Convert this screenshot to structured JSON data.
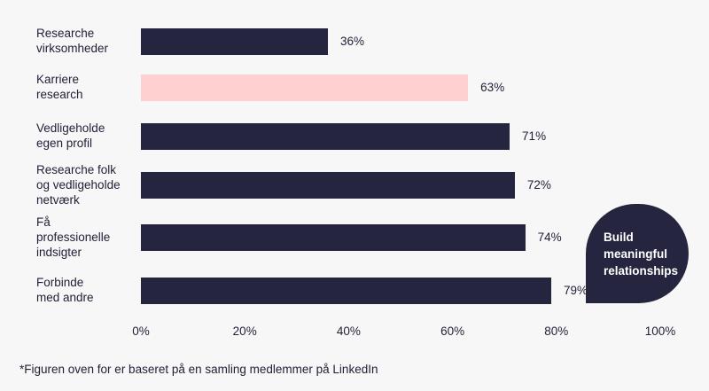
{
  "chart_data": {
    "type": "bar",
    "orientation": "horizontal",
    "categories": [
      "Researche\nvirksomheder",
      "Karriere\nresearch",
      "Vedligeholde\negen profil",
      "Researche folk\nog vedligeholde\nnetværk",
      "Få\nprofessionelle\nindsigter",
      "Forbinde\nmed andre"
    ],
    "values": [
      36,
      63,
      71,
      72,
      74,
      79
    ],
    "value_labels": [
      "36%",
      "63%",
      "71%",
      "72%",
      "74%",
      "79%"
    ],
    "xlim": [
      0,
      100
    ],
    "x_ticks": [
      "0%",
      "20%",
      "40%",
      "60%",
      "80%",
      "100%"
    ],
    "grid": false,
    "legend": "none",
    "colors": {
      "bar": "#25253f",
      "highlight": "#ffd0d0"
    },
    "highlight_index": 1
  },
  "callout": {
    "text": "Build meaningful relationships"
  },
  "footnote": "*Figuren oven for er baseret på en samling medlemmer på LinkedIn"
}
